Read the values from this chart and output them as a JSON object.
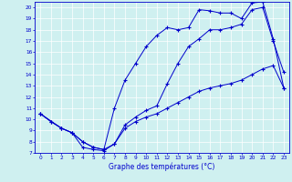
{
  "xlabel": "Graphe des températures (°C)",
  "bg_color": "#cff0f0",
  "line_color": "#0000cc",
  "grid_color": "#ffffff",
  "ylim": [
    7,
    20.5
  ],
  "xlim": [
    -0.5,
    23.5
  ],
  "yticks": [
    7,
    8,
    9,
    10,
    11,
    12,
    13,
    14,
    15,
    16,
    17,
    18,
    19,
    20
  ],
  "xticks": [
    0,
    1,
    2,
    3,
    4,
    5,
    6,
    7,
    8,
    9,
    10,
    11,
    12,
    13,
    14,
    15,
    16,
    17,
    18,
    19,
    20,
    21,
    22,
    23
  ],
  "line1_x": [
    0,
    1,
    2,
    3,
    4,
    5,
    6,
    7,
    8,
    9,
    10,
    11,
    12,
    13,
    14,
    15,
    16,
    17,
    18,
    19,
    20,
    21,
    22,
    23
  ],
  "line1_y": [
    10.5,
    9.8,
    9.2,
    8.8,
    7.5,
    7.3,
    7.2,
    7.8,
    9.5,
    10.2,
    10.8,
    11.2,
    13.2,
    15.0,
    16.5,
    17.2,
    18.0,
    18.0,
    18.2,
    18.5,
    19.8,
    20.0,
    17.0,
    14.2
  ],
  "line2_x": [
    0,
    2,
    3,
    4,
    5,
    6,
    7,
    8,
    9,
    10,
    11,
    12,
    13,
    14,
    15,
    16,
    17,
    18,
    19,
    20,
    21,
    22,
    23
  ],
  "line2_y": [
    10.5,
    9.2,
    8.8,
    8.0,
    7.5,
    7.3,
    11.0,
    13.5,
    15.0,
    16.5,
    17.5,
    18.2,
    18.0,
    18.2,
    19.8,
    19.7,
    19.5,
    19.5,
    19.0,
    20.4,
    20.5,
    17.2,
    12.8
  ],
  "line3_x": [
    0,
    1,
    2,
    3,
    4,
    5,
    6,
    7,
    8,
    9,
    10,
    11,
    12,
    13,
    14,
    15,
    16,
    17,
    18,
    19,
    20,
    21,
    22,
    23
  ],
  "line3_y": [
    10.5,
    9.8,
    9.2,
    8.8,
    8.0,
    7.5,
    7.3,
    7.8,
    9.2,
    9.8,
    10.2,
    10.5,
    11.0,
    11.5,
    12.0,
    12.5,
    12.8,
    13.0,
    13.2,
    13.5,
    14.0,
    14.5,
    14.8,
    12.8
  ]
}
